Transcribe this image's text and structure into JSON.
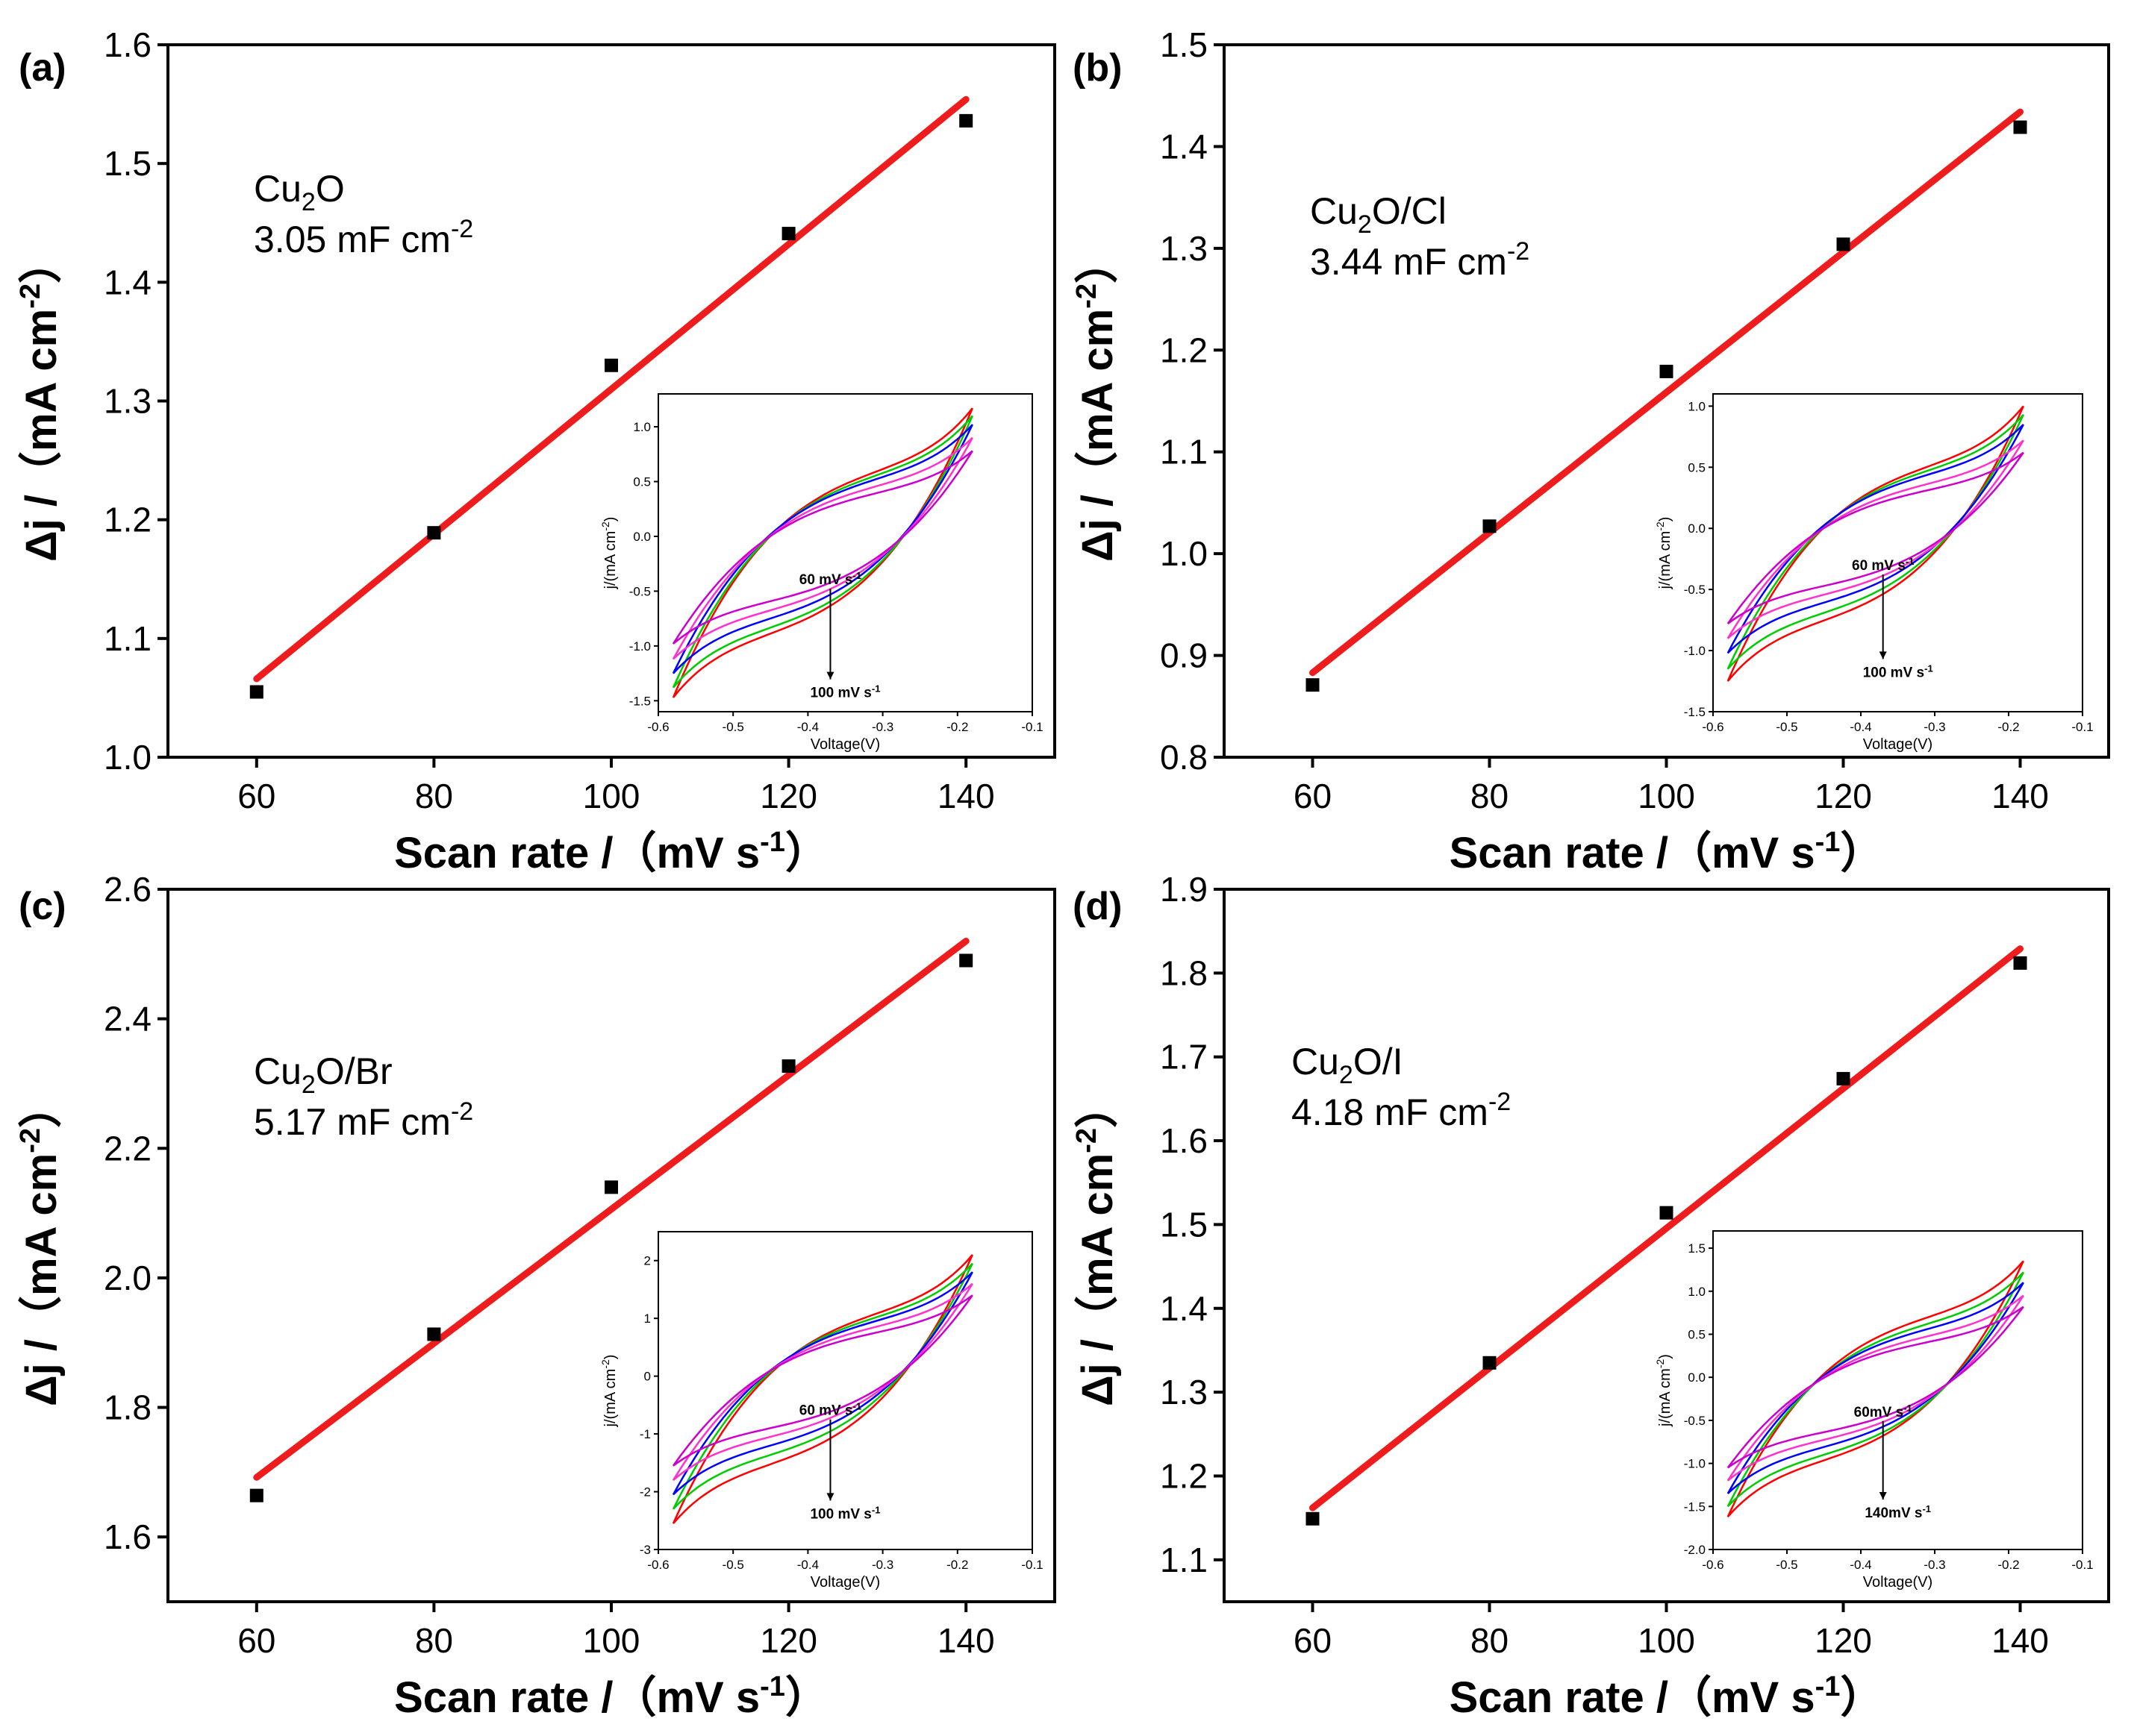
{
  "figure": {
    "colors": {
      "fit_line": "#ee1c1c",
      "marker": "#000000",
      "axes": "#000000",
      "cv_colors": [
        "#ff0000",
        "#00cc00",
        "#0000ff",
        "#ff33cc",
        "#cc00cc"
      ]
    }
  },
  "chart_data": [
    {
      "type": "scatter",
      "panel_label": "(a)",
      "sample": "Cu",
      "sample_sub": "2",
      "sample_suffix": "O",
      "capacitance": "3.05 mF cm",
      "capacitance_sup": "-2",
      "xlabel": "Scan rate /（mV s",
      "xlabel_sup": "-1",
      "xlabel_end": "）",
      "ylabel": "Δj /（mA cm",
      "ylabel_sup": "-2",
      "ylabel_end": "）",
      "xlim": [
        50,
        150
      ],
      "ylim": [
        1.0,
        1.6
      ],
      "xticks": [
        "60",
        "80",
        "100",
        "120",
        "140"
      ],
      "xtick_values": [
        60,
        80,
        100,
        120,
        140
      ],
      "yticks": [
        "1.0",
        "1.1",
        "1.2",
        "1.3",
        "1.4",
        "1.5",
        "1.6"
      ],
      "ytick_values": [
        1.0,
        1.1,
        1.2,
        1.3,
        1.4,
        1.5,
        1.6
      ],
      "x": [
        60,
        80,
        100,
        120,
        140
      ],
      "y": [
        1.055,
        1.189,
        1.33,
        1.441,
        1.536
      ],
      "fit": {
        "x": [
          60,
          140
        ],
        "y": [
          1.066,
          1.554
        ]
      },
      "inset": {
        "type": "line",
        "xlabel": "Voltage(V)",
        "ylabel": "j/(mA cm",
        "ylabel_sup": "-2",
        "ylabel_end": ")",
        "xlim": [
          -0.6,
          -0.1
        ],
        "ylim": [
          -1.6,
          1.3
        ],
        "xticks": [
          "-0.6",
          "-0.5",
          "-0.4",
          "-0.3",
          "-0.2",
          "-0.1"
        ],
        "xtick_values": [
          -0.6,
          -0.5,
          -0.4,
          -0.3,
          -0.2,
          -0.1
        ],
        "yticks": [
          "-1.5",
          "-1.0",
          "-0.5",
          "0.0",
          "0.5",
          "1.0"
        ],
        "ytick_values": [
          -1.5,
          -1.0,
          -0.5,
          0.0,
          0.5,
          1.0
        ],
        "v_range": [
          -0.58,
          -0.18
        ],
        "upper_peaks": [
          1.17,
          1.1,
          1.02,
          0.9,
          0.78
        ],
        "lower_peaks": [
          -1.47,
          -1.38,
          -1.25,
          -1.12,
          -0.98
        ],
        "arrow_top": "60 mV s",
        "arrow_top_sup": "-1",
        "arrow_bottom": "100 mV s",
        "arrow_bottom_sup": "-1"
      }
    },
    {
      "type": "scatter",
      "panel_label": "(b)",
      "sample": "Cu",
      "sample_sub": "2",
      "sample_suffix": "O/Cl",
      "capacitance": "3.44 mF cm",
      "capacitance_sup": "-2",
      "xlabel": "Scan rate /（mV s",
      "xlabel_sup": "-1",
      "xlabel_end": "）",
      "ylabel": "Δj /（mA cm",
      "ylabel_sup": "-2",
      "ylabel_end": "）",
      "xlim": [
        50,
        150
      ],
      "ylim": [
        0.8,
        1.5
      ],
      "xticks": [
        "60",
        "80",
        "100",
        "120",
        "140"
      ],
      "xtick_values": [
        60,
        80,
        100,
        120,
        140
      ],
      "yticks": [
        "0.8",
        "0.9",
        "1.0",
        "1.1",
        "1.2",
        "1.3",
        "1.4",
        "1.5"
      ],
      "ytick_values": [
        0.8,
        0.9,
        1.0,
        1.1,
        1.2,
        1.3,
        1.4,
        1.5
      ],
      "x": [
        60,
        80,
        100,
        120,
        140
      ],
      "y": [
        0.871,
        1.027,
        1.179,
        1.304,
        1.419
      ],
      "fit": {
        "x": [
          60,
          140
        ],
        "y": [
          0.883,
          1.434
        ]
      },
      "inset": {
        "type": "line",
        "xlabel": "Voltage(V)",
        "ylabel": "j/(mA cm",
        "ylabel_sup": "-2",
        "ylabel_end": ")",
        "xlim": [
          -0.6,
          -0.1
        ],
        "ylim": [
          -1.5,
          1.1
        ],
        "xticks": [
          "-0.6",
          "-0.5",
          "-0.4",
          "-0.3",
          "-0.2",
          "-0.1"
        ],
        "xtick_values": [
          -0.6,
          -0.5,
          -0.4,
          -0.3,
          -0.2,
          -0.1
        ],
        "yticks": [
          "-1.5",
          "-1.0",
          "-0.5",
          "0.0",
          "0.5",
          "1.0"
        ],
        "ytick_values": [
          -1.5,
          -1.0,
          -0.5,
          0.0,
          0.5,
          1.0
        ],
        "v_range": [
          -0.58,
          -0.18
        ],
        "upper_peaks": [
          1.0,
          0.93,
          0.85,
          0.72,
          0.62
        ],
        "lower_peaks": [
          -1.25,
          -1.15,
          -1.02,
          -0.9,
          -0.78
        ],
        "arrow_top": "60 mV s",
        "arrow_top_sup": "-1",
        "arrow_bottom": "100 mV s",
        "arrow_bottom_sup": "-1"
      }
    },
    {
      "type": "scatter",
      "panel_label": "(c)",
      "sample": "Cu",
      "sample_sub": "2",
      "sample_suffix": "O/Br",
      "capacitance": "5.17 mF cm",
      "capacitance_sup": "-2",
      "xlabel": "Scan rate /（mV s",
      "xlabel_sup": "-1",
      "xlabel_end": "）",
      "ylabel": "Δj /（mA cm",
      "ylabel_sup": "-2",
      "ylabel_end": "）",
      "xlim": [
        50,
        150
      ],
      "ylim": [
        1.5,
        2.6
      ],
      "xticks": [
        "60",
        "80",
        "100",
        "120",
        "140"
      ],
      "xtick_values": [
        60,
        80,
        100,
        120,
        140
      ],
      "yticks": [
        "1.6",
        "1.8",
        "2.0",
        "2.2",
        "2.4",
        "2.6"
      ],
      "ytick_values": [
        1.6,
        1.8,
        2.0,
        2.2,
        2.4,
        2.6
      ],
      "x": [
        60,
        80,
        100,
        120,
        140
      ],
      "y": [
        1.664,
        1.913,
        2.14,
        2.327,
        2.49
      ],
      "fit": {
        "x": [
          60,
          140
        ],
        "y": [
          1.692,
          2.52
        ]
      },
      "inset": {
        "type": "line",
        "xlabel": "Voltage(V)",
        "ylabel": "j/(mA cm",
        "ylabel_sup": "-2",
        "ylabel_end": ")",
        "xlim": [
          -0.6,
          -0.1
        ],
        "ylim": [
          -3,
          2.5
        ],
        "xticks": [
          "-0.6",
          "-0.5",
          "-0.4",
          "-0.3",
          "-0.2",
          "-0.1"
        ],
        "xtick_values": [
          -0.6,
          -0.5,
          -0.4,
          -0.3,
          -0.2,
          -0.1
        ],
        "yticks": [
          "-3",
          "-2",
          "-1",
          "0",
          "1",
          "2"
        ],
        "ytick_values": [
          -3,
          -2,
          -1,
          0,
          1,
          2
        ],
        "v_range": [
          -0.58,
          -0.18
        ],
        "upper_peaks": [
          2.1,
          1.95,
          1.8,
          1.6,
          1.4
        ],
        "lower_peaks": [
          -2.55,
          -2.3,
          -2.05,
          -1.8,
          -1.55
        ],
        "arrow_top": "60 mV s",
        "arrow_top_sup": "-1",
        "arrow_bottom": "100 mV s",
        "arrow_bottom_sup": "-1"
      }
    },
    {
      "type": "scatter",
      "panel_label": "(d)",
      "sample": "Cu",
      "sample_sub": "2",
      "sample_suffix": "O/I",
      "capacitance": "4.18 mF cm",
      "capacitance_sup": "-2",
      "xlabel": "Scan rate /（mV s",
      "xlabel_sup": "-1",
      "xlabel_end": "）",
      "ylabel": "Δj /（mA cm",
      "ylabel_sup": "-2",
      "ylabel_end": "）",
      "xlim": [
        50,
        150
      ],
      "ylim": [
        1.05,
        1.9
      ],
      "xticks": [
        "60",
        "80",
        "100",
        "120",
        "140"
      ],
      "xtick_values": [
        60,
        80,
        100,
        120,
        140
      ],
      "yticks": [
        "1.1",
        "1.2",
        "1.3",
        "1.4",
        "1.5",
        "1.6",
        "1.7",
        "1.8",
        "1.9"
      ],
      "ytick_values": [
        1.1,
        1.2,
        1.3,
        1.4,
        1.5,
        1.6,
        1.7,
        1.8,
        1.9
      ],
      "x": [
        60,
        80,
        100,
        120,
        140
      ],
      "y": [
        1.149,
        1.335,
        1.514,
        1.674,
        1.812
      ],
      "fit": {
        "x": [
          60,
          140
        ],
        "y": [
          1.162,
          1.829
        ]
      },
      "inset": {
        "type": "line",
        "xlabel": "Voltage(V)",
        "ylabel": "j/(mA cm",
        "ylabel_sup": "-2",
        "ylabel_end": ")",
        "xlim": [
          -0.6,
          -0.1
        ],
        "ylim": [
          -2.0,
          1.7
        ],
        "xticks": [
          "-0.6",
          "-0.5",
          "-0.4",
          "-0.3",
          "-0.2",
          "-0.1"
        ],
        "xtick_values": [
          -0.6,
          -0.5,
          -0.4,
          -0.3,
          -0.2,
          -0.1
        ],
        "yticks": [
          "-2.0",
          "-1.5",
          "-1.0",
          "-0.5",
          "0.0",
          "0.5",
          "1.0",
          "1.5"
        ],
        "ytick_values": [
          -2.0,
          -1.5,
          -1.0,
          -0.5,
          0.0,
          0.5,
          1.0,
          1.5
        ],
        "v_range": [
          -0.58,
          -0.18
        ],
        "upper_peaks": [
          1.35,
          1.22,
          1.1,
          0.95,
          0.82
        ],
        "lower_peaks": [
          -1.62,
          -1.5,
          -1.35,
          -1.2,
          -1.05
        ],
        "arrow_top": "60mV s",
        "arrow_top_sup": "-1",
        "arrow_bottom": "140mV s",
        "arrow_bottom_sup": "-1"
      }
    }
  ]
}
